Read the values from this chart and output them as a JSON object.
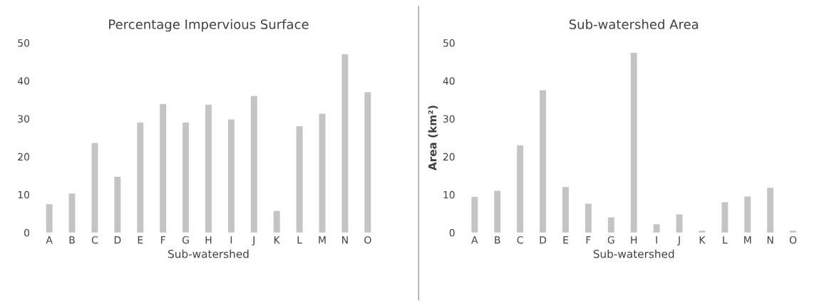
{
  "chart_data": [
    {
      "type": "bar",
      "title": "Percentage Impervious Surface",
      "xlabel": "Sub-watershed",
      "categories": [
        "A",
        "B",
        "C",
        "D",
        "E",
        "F",
        "G",
        "H",
        "I",
        "J",
        "K",
        "L",
        "M",
        "N",
        "O"
      ],
      "values": [
        7.5,
        10.3,
        23.6,
        14.7,
        29,
        33.9,
        29,
        33.7,
        29.8,
        36,
        5.7,
        28,
        31.3,
        47,
        37
      ],
      "color": "#c4c4c4",
      "ylim": [
        0,
        50
      ],
      "yticks": [
        0,
        10,
        20,
        30,
        40,
        50
      ],
      "grid": false
    },
    {
      "type": "bar",
      "title": "Sub-watershed Area",
      "xlabel": "Sub-watershed",
      "ylabel": "Area (km²)",
      "categories": [
        "A",
        "B",
        "C",
        "D",
        "E",
        "F",
        "G",
        "H",
        "I",
        "J",
        "K",
        "L",
        "M",
        "N",
        "O"
      ],
      "values": [
        9.4,
        11,
        23,
        37.5,
        12,
        7.6,
        4,
        47.4,
        2.2,
        4.8,
        0.5,
        8,
        9.5,
        11.8,
        0.5
      ],
      "color": "#c4c4c4",
      "ylim": [
        0,
        50
      ],
      "yticks": [
        0,
        10,
        20,
        30,
        40,
        50
      ],
      "grid": false
    }
  ]
}
